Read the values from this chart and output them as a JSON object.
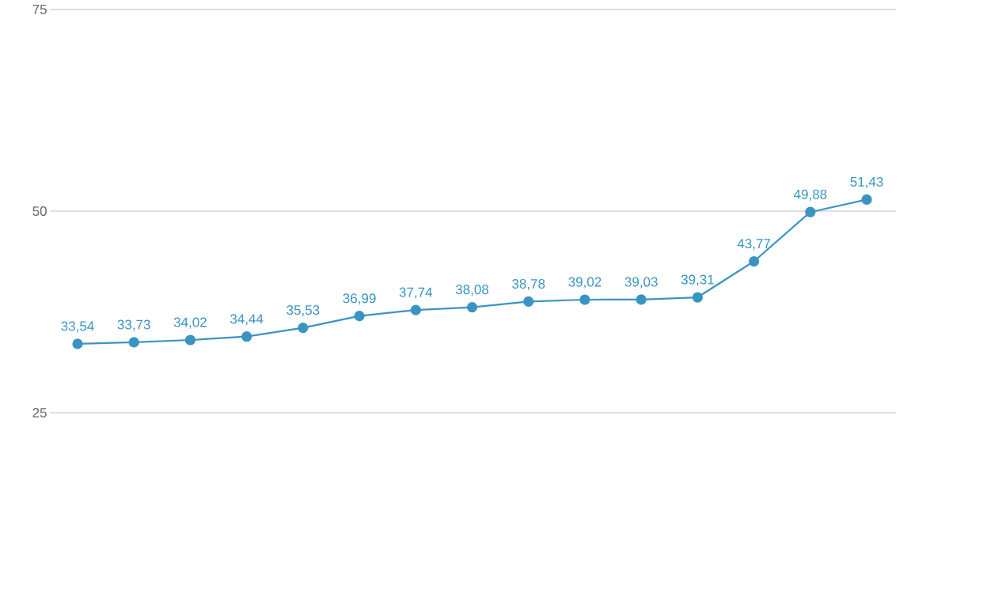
{
  "chart_data": {
    "type": "line",
    "categories": [
      null,
      null,
      null,
      null,
      null,
      null,
      null,
      null,
      null,
      null,
      null,
      null,
      null,
      null,
      null
    ],
    "series": [
      {
        "color": "#3a94c3",
        "values": [
          33.54,
          33.73,
          34.02,
          34.44,
          35.53,
          36.99,
          37.74,
          38.08,
          38.78,
          39.02,
          39.03,
          39.31,
          43.77,
          49.88,
          51.43
        ],
        "value_labels": [
          "33,54",
          "33,73",
          "34,02",
          "34,44",
          "35,53",
          "36,99",
          "37,74",
          "38,08",
          "38,78",
          "39,02",
          "39,03",
          "39,31",
          "43,77",
          "49,88",
          "51,43"
        ]
      }
    ],
    "ylim": [
      25,
      75
    ],
    "yticks": [
      25,
      50,
      75
    ],
    "grid": "y",
    "marker": "circle",
    "line_style": "solid",
    "tick_labels": "y"
  }
}
